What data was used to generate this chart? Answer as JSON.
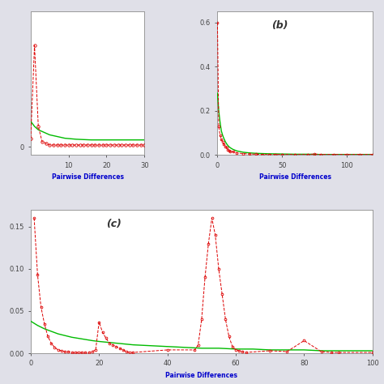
{
  "background_color": "#e0e0e8",
  "panel_bg": "#ffffff",
  "subplot_a": {
    "label": "",
    "xlim": [
      0,
      30
    ],
    "ylim": [
      -0.0005,
      0.008
    ],
    "yticks": [
      0.0
    ],
    "xticks": [
      10,
      20,
      30
    ],
    "xlabel": "Pairwise Differences",
    "exp_x": [
      0,
      1,
      2,
      3,
      4,
      5,
      6,
      7,
      8,
      9,
      10,
      11,
      12,
      13,
      14,
      15,
      16,
      17,
      18,
      19,
      20,
      21,
      22,
      23,
      24,
      25,
      26,
      27,
      28,
      29,
      30
    ],
    "exp_y": [
      0.0015,
      0.0012,
      0.001,
      0.0009,
      0.0008,
      0.0007,
      0.00065,
      0.0006,
      0.00055,
      0.0005,
      0.00048,
      0.00046,
      0.00044,
      0.00043,
      0.00042,
      0.00041,
      0.0004,
      0.0004,
      0.0004,
      0.0004,
      0.0004,
      0.0004,
      0.0004,
      0.0004,
      0.0004,
      0.0004,
      0.0004,
      0.0004,
      0.0004,
      0.0004,
      0.0004
    ],
    "obs_x": [
      0,
      1,
      2,
      3,
      4,
      5,
      6,
      7,
      8,
      9,
      10,
      11,
      12,
      13,
      14,
      15,
      16,
      17,
      18,
      19,
      20,
      21,
      22,
      23,
      24,
      25,
      26,
      27,
      28,
      29,
      30
    ],
    "obs_y": [
      0.0005,
      0.006,
      0.0012,
      0.0003,
      0.0002,
      0.0001,
      0.0001,
      0.0001,
      0.0001,
      0.0001,
      0.0001,
      0.0001,
      0.0001,
      0.0001,
      0.0001,
      0.0001,
      0.0001,
      0.0001,
      0.0001,
      0.0001,
      0.0001,
      0.0001,
      0.0001,
      0.0001,
      0.0001,
      0.0001,
      0.0001,
      0.0001,
      0.0001,
      0.0001,
      0.0001
    ]
  },
  "subplot_b": {
    "label": "(b)",
    "xlim": [
      0,
      120
    ],
    "ylim": [
      0,
      0.65
    ],
    "yticks": [
      0.0,
      0.2,
      0.4,
      0.6
    ],
    "xticks": [
      0,
      50,
      100
    ],
    "xlabel": "Pairwise Differences",
    "exp_x": [
      0,
      1,
      2,
      3,
      4,
      5,
      6,
      7,
      8,
      9,
      10,
      12,
      15,
      20,
      25,
      30,
      40,
      50,
      60,
      70,
      80,
      90,
      100,
      110,
      120
    ],
    "exp_y": [
      0.28,
      0.2,
      0.15,
      0.11,
      0.09,
      0.075,
      0.062,
      0.052,
      0.044,
      0.038,
      0.033,
      0.026,
      0.019,
      0.013,
      0.01,
      0.008,
      0.006,
      0.005,
      0.004,
      0.004,
      0.003,
      0.003,
      0.003,
      0.003,
      0.003
    ],
    "obs_x": [
      0,
      1,
      2,
      3,
      4,
      5,
      6,
      7,
      8,
      9,
      10,
      12,
      15,
      20,
      25,
      30,
      35,
      40,
      45,
      50,
      60,
      70,
      75,
      80,
      90,
      100,
      110,
      120
    ],
    "obs_y": [
      0.6,
      0.13,
      0.09,
      0.07,
      0.06,
      0.05,
      0.04,
      0.035,
      0.025,
      0.02,
      0.018,
      0.015,
      0.01,
      0.007,
      0.005,
      0.004,
      0.003,
      0.003,
      0.003,
      0.003,
      0.003,
      0.003,
      0.005,
      0.003,
      0.003,
      0.003,
      0.003,
      0.003
    ]
  },
  "subplot_c": {
    "label": "(c)",
    "xlim": [
      0,
      100
    ],
    "ylim": [
      0,
      0.17
    ],
    "yticks": [
      0.0,
      0.05,
      0.1,
      0.15
    ],
    "xticks": [
      0,
      20,
      40,
      60,
      80,
      100
    ],
    "xlabel": "Pairwise Differences",
    "exp_x": [
      0,
      2,
      4,
      6,
      8,
      10,
      12,
      15,
      18,
      20,
      25,
      30,
      35,
      40,
      45,
      50,
      55,
      60,
      65,
      70,
      75,
      80,
      85,
      90,
      95,
      100
    ],
    "exp_y": [
      0.038,
      0.033,
      0.029,
      0.026,
      0.023,
      0.021,
      0.019,
      0.017,
      0.015,
      0.014,
      0.012,
      0.01,
      0.009,
      0.008,
      0.007,
      0.006,
      0.006,
      0.005,
      0.005,
      0.004,
      0.004,
      0.004,
      0.003,
      0.003,
      0.003,
      0.003
    ],
    "obs_x": [
      1,
      2,
      3,
      4,
      5,
      6,
      7,
      8,
      9,
      10,
      11,
      12,
      13,
      14,
      15,
      16,
      17,
      18,
      19,
      20,
      21,
      22,
      23,
      24,
      25,
      26,
      27,
      28,
      29,
      30,
      40,
      48,
      49,
      50,
      51,
      52,
      53,
      54,
      55,
      56,
      57,
      58,
      59,
      60,
      61,
      62,
      63,
      70,
      75,
      80,
      85,
      88,
      90,
      100
    ],
    "obs_y": [
      0.16,
      0.093,
      0.055,
      0.035,
      0.02,
      0.012,
      0.007,
      0.004,
      0.003,
      0.002,
      0.002,
      0.001,
      0.001,
      0.001,
      0.001,
      0.001,
      0.001,
      0.002,
      0.004,
      0.037,
      0.025,
      0.018,
      0.012,
      0.01,
      0.008,
      0.006,
      0.004,
      0.002,
      0.001,
      0.001,
      0.004,
      0.004,
      0.01,
      0.04,
      0.09,
      0.13,
      0.16,
      0.14,
      0.1,
      0.07,
      0.04,
      0.02,
      0.008,
      0.004,
      0.003,
      0.002,
      0.001,
      0.003,
      0.002,
      0.015,
      0.002,
      0.001,
      0.001,
      0.001
    ]
  },
  "exp_color": "#00bb00",
  "obs_color": "#dd0000",
  "legend_text_color": "#0000cc",
  "axis_label_color": "#0000cc",
  "tick_color": "#444444"
}
